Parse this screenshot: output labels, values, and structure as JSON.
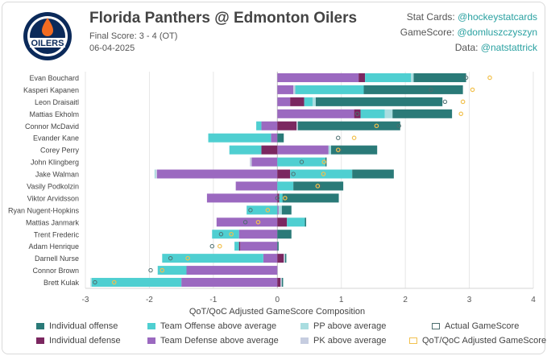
{
  "header": {
    "title": "Florida Panthers @ Edmonton Oilers",
    "final_score": "Final Score: 3 - 4 (OT)",
    "date": "06-04-2025",
    "logo_text": "OILERS"
  },
  "credits": {
    "stat_cards_label": "Stat Cards:",
    "stat_cards_handle": "@hockeystatcards",
    "gamescore_label": "GameScore:",
    "gamescore_handle": "@domluszczyszyn",
    "data_label": "Data:",
    "data_handle": "@natstattrick"
  },
  "colors": {
    "individual_offense": "#2a7a78",
    "individual_defense": "#7b2760",
    "team_offense": "#4fcfd1",
    "team_defense": "#9b69c0",
    "pp": "#a9dde0",
    "pk": "#c6cde0",
    "actual_marker": "#4d6e6f",
    "adjusted_marker": "#f2c14e"
  },
  "legend": {
    "individual_offense": "Individual offense",
    "individual_defense": "Individual defense",
    "team_offense": "Team Offense above average",
    "team_defense": "Team Defense above average",
    "pp": "PP above average",
    "pk": "PK above average",
    "actual": "Actual GameScore",
    "adjusted": "QoT/QoC Adjusted GameScore"
  },
  "chart_data": {
    "type": "bar",
    "orientation": "horizontal-stacked",
    "xlabel": "QoT/QoC Adjusted GameScore Composition",
    "xlim": [
      -3,
      4
    ],
    "xticks": [
      "-3",
      "-2",
      "-1",
      "0",
      "1",
      "2",
      "3",
      "4"
    ],
    "categories": [
      "Evan Bouchard",
      "Kasperi Kapanen",
      "Leon Draisaitl",
      "Mattias Ekholm",
      "Connor McDavid",
      "Evander Kane",
      "Corey Perry",
      "John Klingberg",
      "Jake Walman",
      "Vasily Podkolzin",
      "Viktor Arvidsson",
      "Ryan Nugent-Hopkins",
      "Mattias Janmark",
      "Trent Frederic",
      "Adam Henrique",
      "Darnell Nurse",
      "Connor Brown",
      "Brett Kulak"
    ],
    "series": [
      {
        "name": "Team Defense above average",
        "key": "team_defense",
        "values": [
          1.27,
          0.25,
          0.2,
          1.2,
          -0.25,
          -0.1,
          0.8,
          -0.4,
          -1.88,
          -0.65,
          -1.1,
          0.02,
          -0.95,
          -0.6,
          -0.58,
          -0.22,
          -1.42,
          -1.5
        ]
      },
      {
        "name": "Individual defense",
        "key": "individual_defense",
        "values": [
          0.1,
          0.0,
          0.22,
          0.1,
          0.3,
          0.0,
          -0.25,
          0.0,
          0.2,
          0.0,
          0.03,
          0.0,
          0.15,
          0.0,
          -0.02,
          0.1,
          0.0,
          0.05
        ]
      },
      {
        "name": "PK above average",
        "key": "pk",
        "values": [
          0.0,
          0.03,
          0.0,
          0.0,
          0.02,
          0.0,
          0.0,
          -0.03,
          -0.02,
          0.0,
          0.0,
          0.0,
          0.0,
          0.0,
          0.0,
          0.02,
          0.0,
          0.02
        ]
      },
      {
        "name": "Team Offense above average",
        "key": "team_offense",
        "values": [
          0.72,
          1.07,
          0.13,
          0.38,
          -0.08,
          -0.98,
          -0.5,
          0.75,
          0.97,
          0.25,
          0.05,
          -0.48,
          0.28,
          -0.42,
          -0.07,
          -1.58,
          -0.45,
          -1.4
        ]
      },
      {
        "name": "PP above average",
        "key": "pp",
        "values": [
          0.04,
          0.0,
          0.05,
          0.12,
          0.0,
          0.0,
          0.04,
          0.0,
          -0.02,
          0.0,
          0.0,
          0.05,
          0.0,
          0.0,
          0.0,
          0.0,
          0.0,
          -0.02
        ]
      },
      {
        "name": "Individual offense",
        "key": "individual_offense",
        "values": [
          0.82,
          1.55,
          1.98,
          0.93,
          1.6,
          0.1,
          0.72,
          0.02,
          0.65,
          0.78,
          0.88,
          0.15,
          0.02,
          0.22,
          0.02,
          0.02,
          0.0,
          0.02
        ]
      }
    ],
    "actual_gamescore": [
      2.95,
      2.4,
      2.62,
      1.25,
      1.9,
      0.95,
      0.97,
      0.38,
      0.25,
      0.65,
      0.0,
      -0.42,
      -0.5,
      -0.88,
      -1.02,
      -1.67,
      -1.98,
      -2.85
    ],
    "adjusted_gamescore": [
      3.32,
      3.05,
      2.9,
      2.87,
      1.55,
      1.2,
      0.95,
      0.73,
      0.72,
      0.63,
      0.12,
      -0.15,
      -0.3,
      -0.72,
      -0.9,
      -1.4,
      -1.8,
      -2.55
    ]
  }
}
